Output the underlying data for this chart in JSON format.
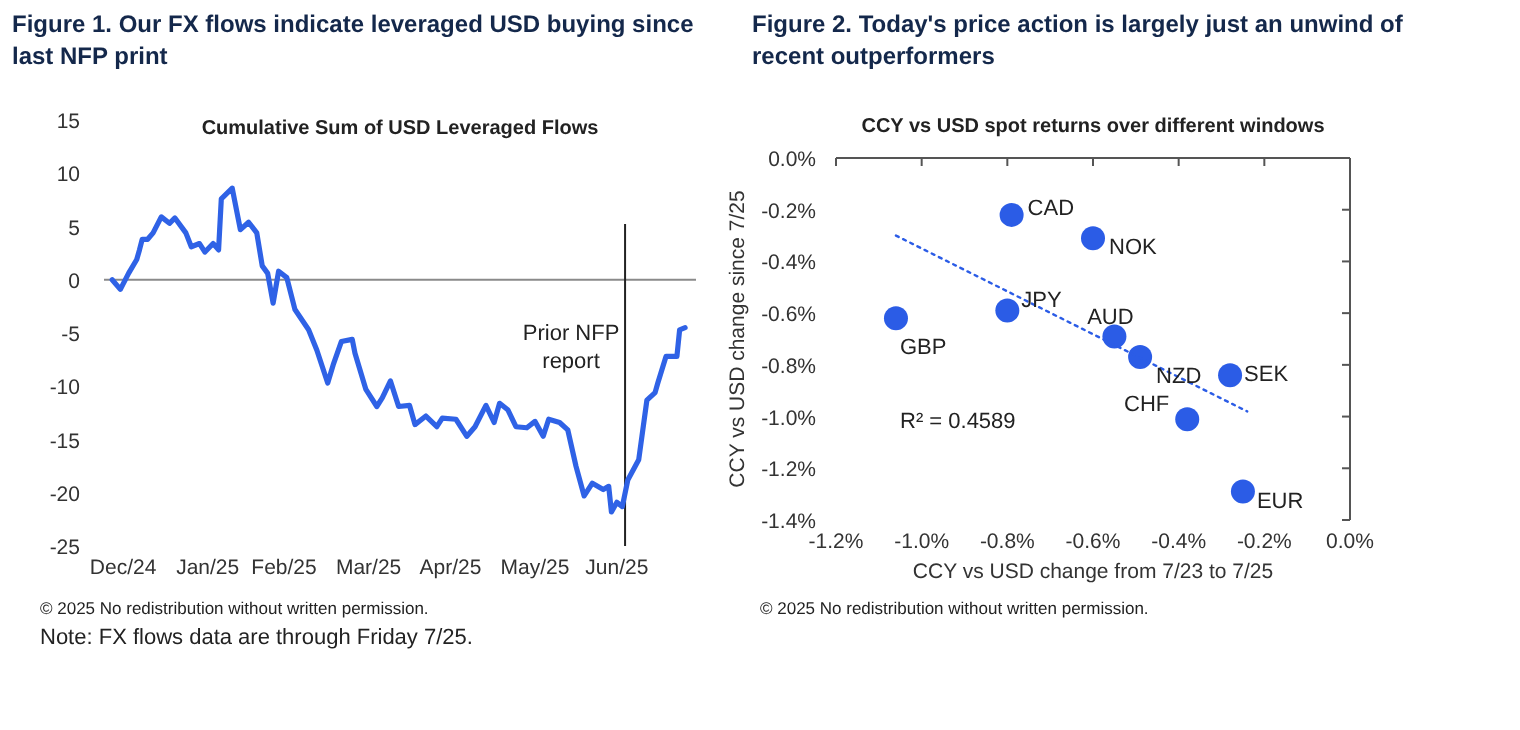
{
  "chart_data": [
    {
      "type": "line",
      "title": "Figure 1. Our FX flows indicate leveraged USD buying since last NFP print",
      "subtitle": "Cumulative Sum of USD Leveraged Flows",
      "x": [
        "2024-12-27",
        "2024-12-30",
        "2025-01-02",
        "2025-01-05",
        "2025-01-06",
        "2025-01-07",
        "2025-01-09",
        "2025-01-11",
        "2025-01-14",
        "2025-01-17",
        "2025-01-19",
        "2025-01-23",
        "2025-01-25",
        "2025-01-28",
        "2025-01-30",
        "2025-02-02",
        "2025-02-04",
        "2025-02-05",
        "2025-02-09",
        "2025-02-12",
        "2025-02-15",
        "2025-02-18",
        "2025-02-20",
        "2025-02-22",
        "2025-02-24",
        "2025-02-26",
        "2025-03-01",
        "2025-03-04",
        "2025-03-09",
        "2025-03-12",
        "2025-03-16",
        "2025-03-18",
        "2025-03-21",
        "2025-03-25",
        "2025-03-26",
        "2025-03-30",
        "2025-04-03",
        "2025-04-05",
        "2025-04-08",
        "2025-04-11",
        "2025-04-15",
        "2025-04-17",
        "2025-04-21",
        "2025-04-25",
        "2025-04-27",
        "2025-05-02",
        "2025-05-06",
        "2025-05-09",
        "2025-05-13",
        "2025-05-16",
        "2025-05-18",
        "2025-05-21",
        "2025-05-24",
        "2025-05-28",
        "2025-05-31",
        "2025-06-03",
        "2025-06-05",
        "2025-06-09",
        "2025-06-12",
        "2025-06-15",
        "2025-06-18",
        "2025-06-21",
        "2025-06-25",
        "2025-06-27",
        "2025-06-28",
        "2025-06-30",
        "2025-07-02",
        "2025-07-04",
        "2025-07-08",
        "2025-07-11",
        "2025-07-14",
        "2025-07-15",
        "2025-07-18",
        "2025-07-22",
        "2025-07-23",
        "2025-07-25"
      ],
      "series": [
        {
          "color": "#2f62e6",
          "values": [
            0,
            -0.9,
            0.6,
            1.9,
            2.8,
            3.8,
            3.8,
            4.4,
            5.9,
            5.3,
            5.8,
            4.4,
            3.1,
            3.4,
            2.6,
            3.4,
            2.8,
            7.6,
            8.6,
            4.7,
            5.4,
            4.4,
            1.3,
            0.6,
            -2.2,
            0.8,
            0.2,
            -2.8,
            -4.7,
            -6.6,
            -9.7,
            -8,
            -5.8,
            -5.6,
            -6.9,
            -10.3,
            -11.9,
            -11.1,
            -9.5,
            -11.9,
            -11.8,
            -13.6,
            -12.8,
            -13.8,
            -13,
            -13.1,
            -14.7,
            -13.8,
            -11.8,
            -13.4,
            -11.6,
            -12.2,
            -13.8,
            -13.9,
            -13.3,
            -14.7,
            -13.1,
            -13.4,
            -14.1,
            -17.5,
            -20.3,
            -19.1,
            -19.7,
            -19.4,
            -21.8,
            -20.9,
            -21.3,
            -18.8,
            -16.9,
            -11.3,
            -10.6,
            -9.7,
            -7.2,
            -7.2,
            -4.7,
            -4.5
          ]
        }
      ],
      "xlim": [
        "2024-12-24",
        "2025-07-29"
      ],
      "xticks": [
        {
          "value": "2024-12-31",
          "label": "Dec/24"
        },
        {
          "value": "2025-01-31",
          "label": "Jan/25"
        },
        {
          "value": "2025-02-28",
          "label": "Feb/25"
        },
        {
          "value": "2025-03-31",
          "label": "Mar/25"
        },
        {
          "value": "2025-04-30",
          "label": "Apr/25"
        },
        {
          "value": "2025-05-31",
          "label": "May/25"
        },
        {
          "value": "2025-06-30",
          "label": "Jun/25"
        }
      ],
      "ylim": [
        -25,
        15
      ],
      "yticks": [
        -25,
        -20,
        -15,
        -10,
        -5,
        0,
        5,
        10,
        15
      ],
      "ref_lines": [
        {
          "axis": "y",
          "value": 0,
          "color": "#8a8a8a"
        },
        {
          "axis": "x",
          "value": "2025-07-03",
          "label": "Prior NFP report",
          "color": "#222222"
        }
      ],
      "grid": false,
      "annotations": [
        "© 2025 No redistribution without written permission.",
        "Note: FX flows data are through Friday 7/25."
      ]
    },
    {
      "type": "scatter",
      "title": "Figure 2. Today's price action is largely just an unwind of recent outperformers",
      "subtitle": "CCY vs USD spot returns over different windows",
      "xlabel": "CCY vs USD change from 7/23 to 7/25",
      "ylabel": "CCY vs USD change since 7/25",
      "series": [
        {
          "type": "scatter",
          "marker": "circle",
          "color": "#2b5ce6",
          "x": [
            -0.79,
            -0.6,
            -0.8,
            -1.06,
            -0.55,
            -0.49,
            -0.28,
            -0.38,
            -0.25
          ],
          "values": [
            -0.22,
            -0.31,
            -0.59,
            -0.62,
            -0.69,
            -0.77,
            -0.84,
            -1.01,
            -1.29
          ]
        },
        {
          "type": "line",
          "color": "#2b5ce6",
          "line_style": "dotted",
          "x": [
            -1.06,
            -0.24
          ],
          "values": [
            -0.3,
            -0.98
          ]
        }
      ],
      "xlim": [
        -1.2,
        0
      ],
      "xticks": [
        {
          "value": -1.2,
          "label": "-1.2%"
        },
        {
          "value": -1,
          "label": "-1.0%"
        },
        {
          "value": -0.8,
          "label": "-0.8%"
        },
        {
          "value": -0.6,
          "label": "-0.6%"
        },
        {
          "value": -0.4,
          "label": "-0.4%"
        },
        {
          "value": -0.2,
          "label": "-0.2%"
        },
        {
          "value": 0,
          "label": "0.0%"
        }
      ],
      "ylim": [
        -1.4,
        0
      ],
      "yticks": [
        {
          "value": -1.4,
          "label": "-1.4%"
        },
        {
          "value": -1.2,
          "label": "-1.2%"
        },
        {
          "value": -1,
          "label": "-1.0%"
        },
        {
          "value": -0.8,
          "label": "-0.8%"
        },
        {
          "value": -0.6,
          "label": "-0.6%"
        },
        {
          "value": -0.4,
          "label": "-0.4%"
        },
        {
          "value": -0.2,
          "label": "-0.2%"
        },
        {
          "value": 0,
          "label": "0.0%"
        }
      ],
      "grid": false,
      "annotations": [
        {
          "text": "CAD",
          "x": -0.79,
          "y": -0.22
        },
        {
          "text": "NOK",
          "x": -0.6,
          "y": -0.31
        },
        {
          "text": "JPY",
          "x": -0.8,
          "y": -0.59
        },
        {
          "text": "GBP",
          "x": -1.06,
          "y": -0.62
        },
        {
          "text": "AUD",
          "x": -0.55,
          "y": -0.69
        },
        {
          "text": "NZD",
          "x": -0.49,
          "y": -0.77
        },
        {
          "text": "SEK",
          "x": -0.28,
          "y": -0.84
        },
        {
          "text": "CHF",
          "x": -0.38,
          "y": -1.01
        },
        {
          "text": "EUR",
          "x": -0.25,
          "y": -1.29
        },
        "R² = 0.4589",
        "© 2025 No redistribution without written permission."
      ]
    }
  ]
}
